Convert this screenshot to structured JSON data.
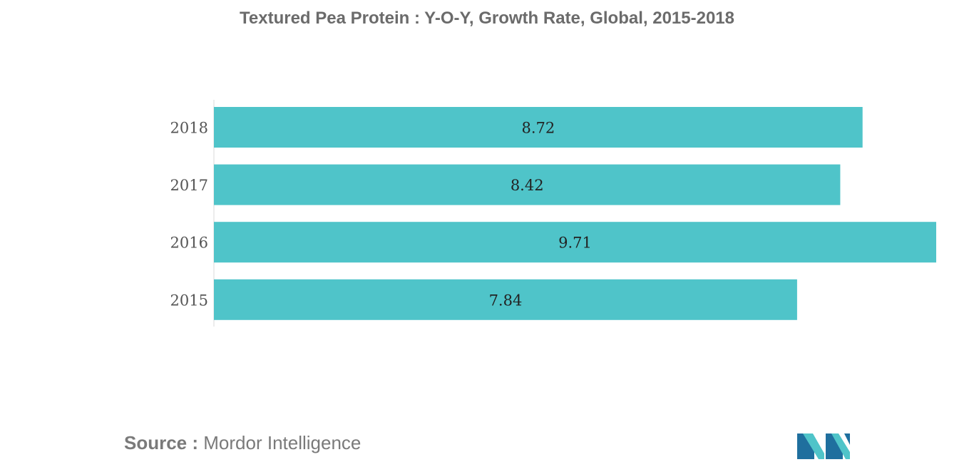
{
  "chart_data": {
    "type": "bar",
    "orientation": "horizontal",
    "title": "Textured Pea Protein : Y-O-Y, Growth Rate, Global, 2015-2018",
    "categories": [
      "2018",
      "2017",
      "2016",
      "2015"
    ],
    "values": [
      8.72,
      8.42,
      9.71,
      7.84
    ],
    "data_labels": [
      "8.72",
      "8.42",
      "9.71",
      "7.84"
    ],
    "xlim": [
      0,
      9.71
    ],
    "xlabel": "",
    "ylabel": "",
    "grid": false,
    "legend": "none",
    "bar_color": "#4fc4c9"
  },
  "footer": {
    "source_prefix": "Source :",
    "source_text": "Mordor Intelligence"
  },
  "logo": {
    "icon": "mordor-intelligence-logo-icon",
    "colors": [
      "#1f6f9e",
      "#4fc4c9"
    ]
  }
}
